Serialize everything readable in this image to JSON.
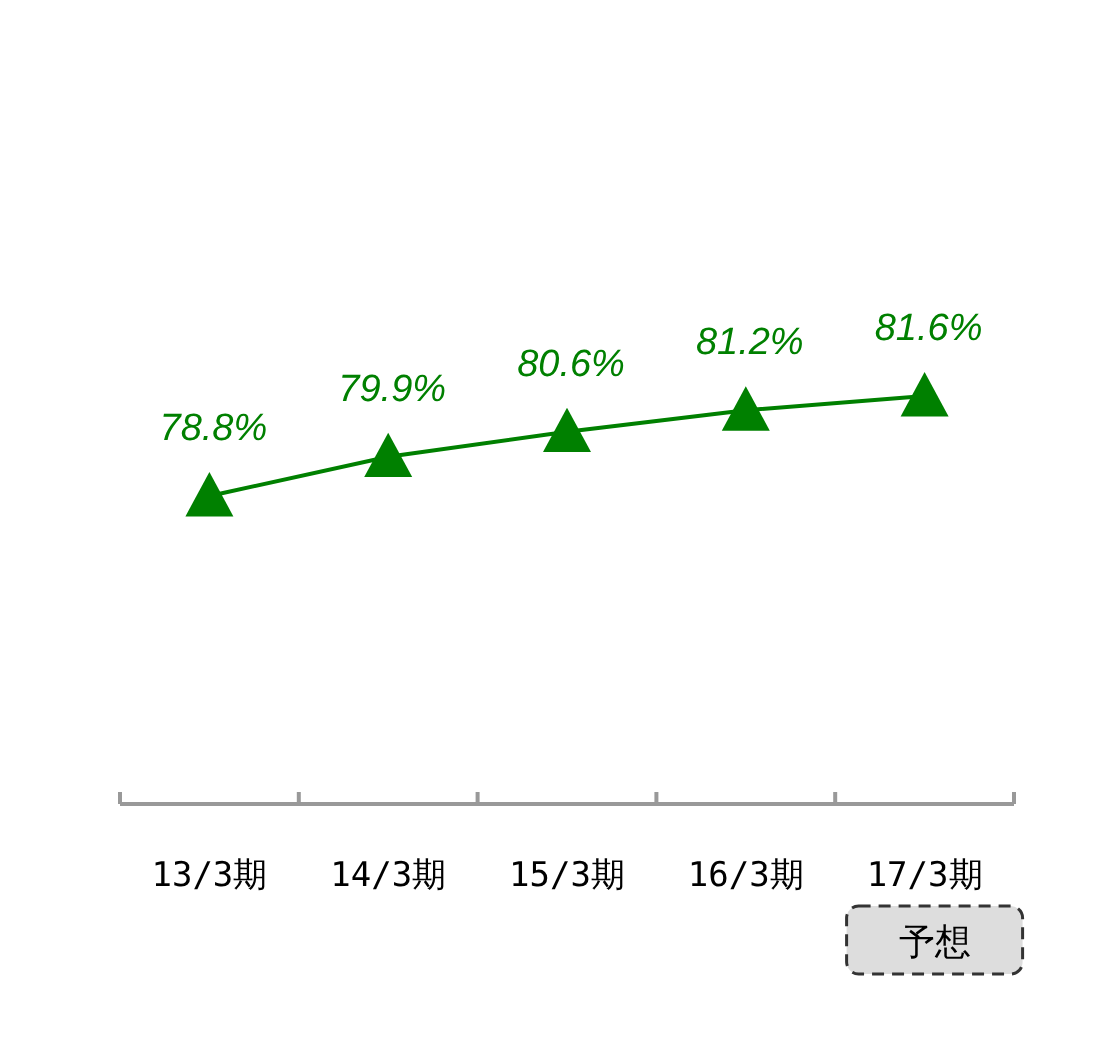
{
  "chart_data": {
    "type": "line",
    "categories": [
      "13/3期",
      "14/3期",
      "15/3期",
      "16/3期",
      "17/3期"
    ],
    "series": [
      {
        "color": "#008000",
        "values": [
          78.8,
          79.9,
          80.6,
          81.2,
          81.6
        ],
        "value_labels": [
          "78.8%",
          "79.9%",
          "80.6%",
          "81.2%",
          "81.6%"
        ]
      }
    ],
    "marker": "triangle",
    "line_style": "solid",
    "annotations": [
      "予想"
    ]
  }
}
